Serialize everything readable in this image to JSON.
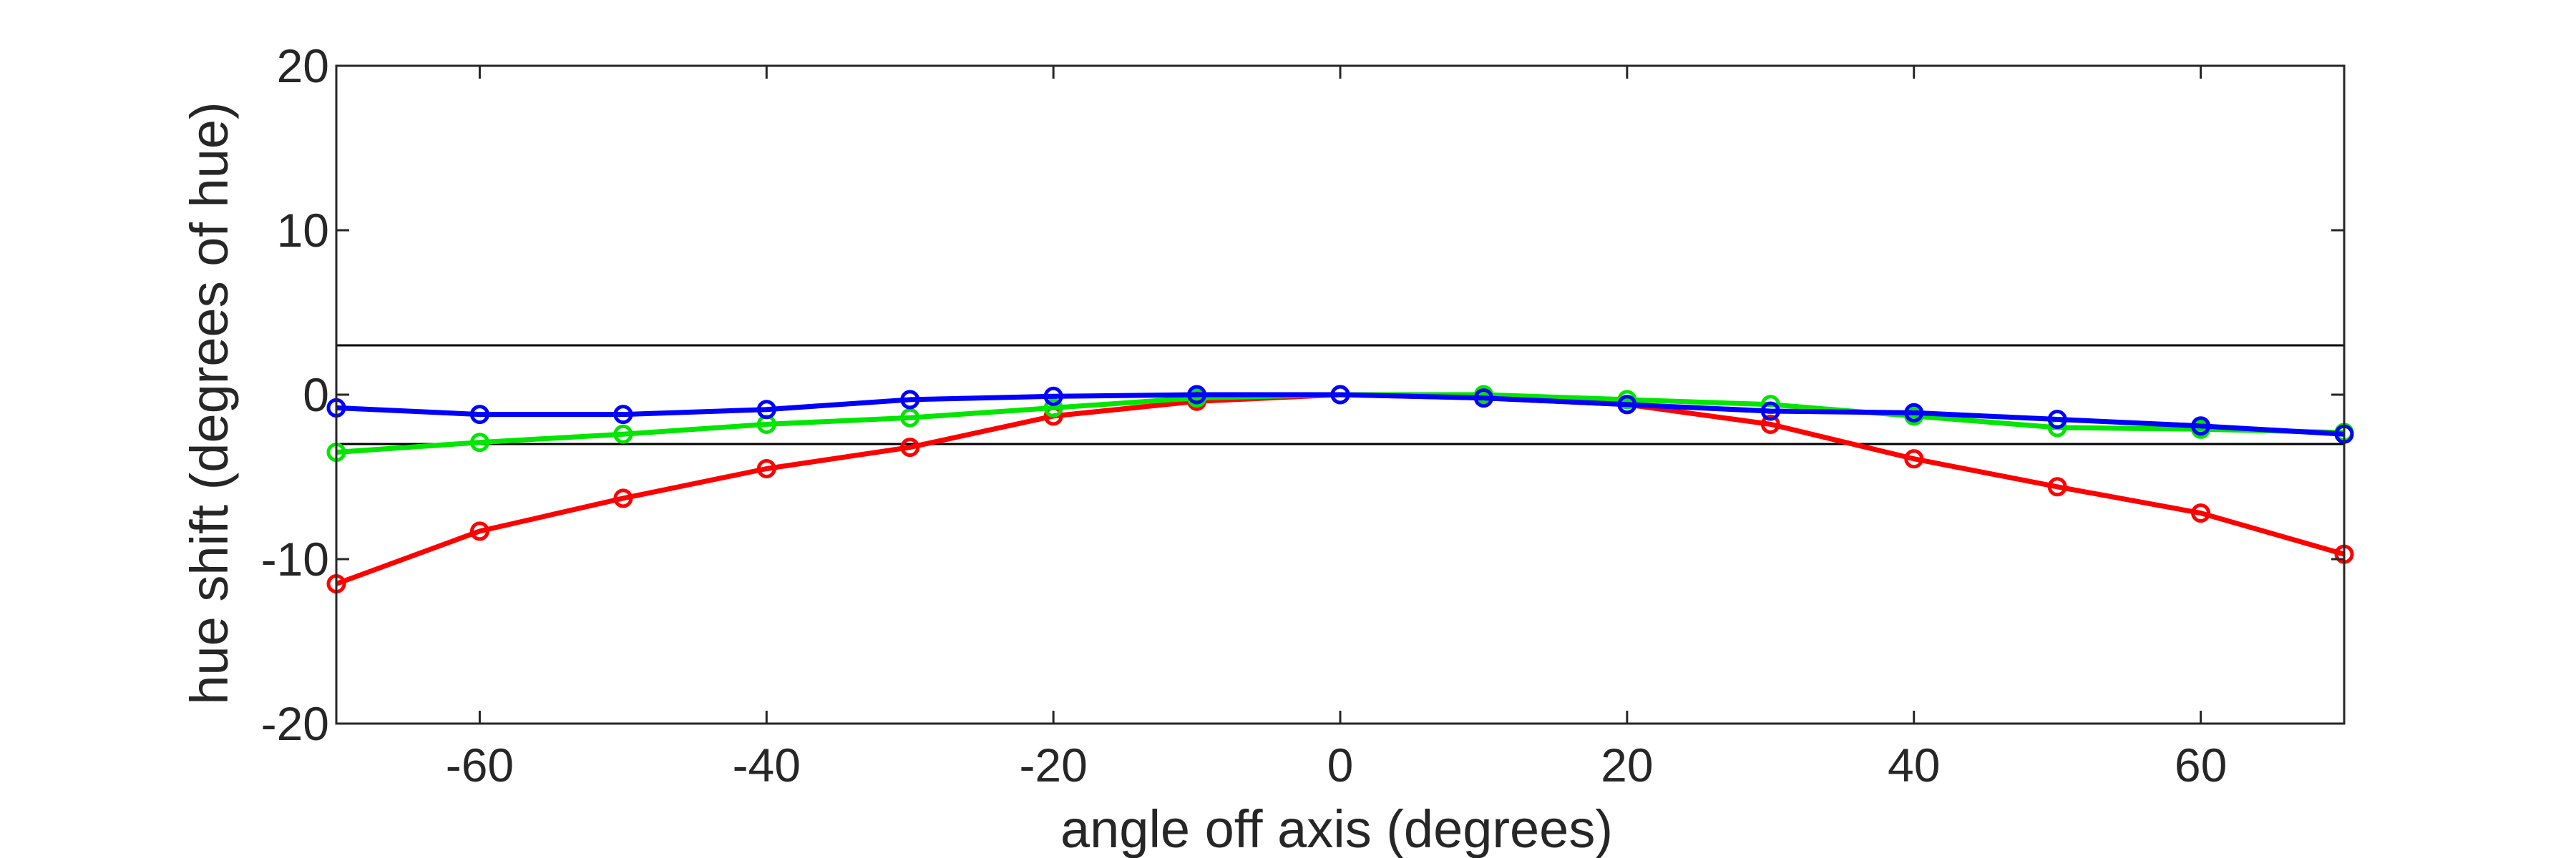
{
  "chart_data": {
    "type": "line",
    "xlabel": "angle off axis (degrees)",
    "ylabel": "hue shift (degrees of hue)",
    "xlim": [
      -70,
      70
    ],
    "ylim": [
      -20,
      20
    ],
    "xticks": [
      -60,
      -40,
      -20,
      0,
      20,
      40,
      60
    ],
    "yticks": [
      -20,
      -10,
      0,
      10,
      20
    ],
    "reference_lines": [
      3,
      -3
    ],
    "grid": false,
    "x": [
      -70,
      -60,
      -50,
      -40,
      -30,
      -20,
      -10,
      0,
      10,
      20,
      30,
      40,
      50,
      60,
      70
    ],
    "series": [
      {
        "color": "#ff0000",
        "values": [
          -11.5,
          -8.3,
          -6.3,
          -4.5,
          -3.2,
          -1.3,
          -0.4,
          0.0,
          -0.2,
          -0.6,
          -1.8,
          -3.9,
          -5.6,
          -7.2,
          -9.7
        ]
      },
      {
        "color": "#00e600",
        "values": [
          -3.5,
          -2.9,
          -2.4,
          -1.8,
          -1.4,
          -0.8,
          -0.2,
          0.0,
          0.0,
          -0.3,
          -0.6,
          -1.3,
          -2.0,
          -2.1,
          -2.3
        ]
      },
      {
        "color": "#0000ff",
        "values": [
          -0.8,
          -1.2,
          -1.2,
          -0.9,
          -0.3,
          -0.1,
          0.0,
          0.0,
          -0.2,
          -0.6,
          -1.0,
          -1.1,
          -1.5,
          -1.9,
          -2.4
        ]
      }
    ]
  }
}
